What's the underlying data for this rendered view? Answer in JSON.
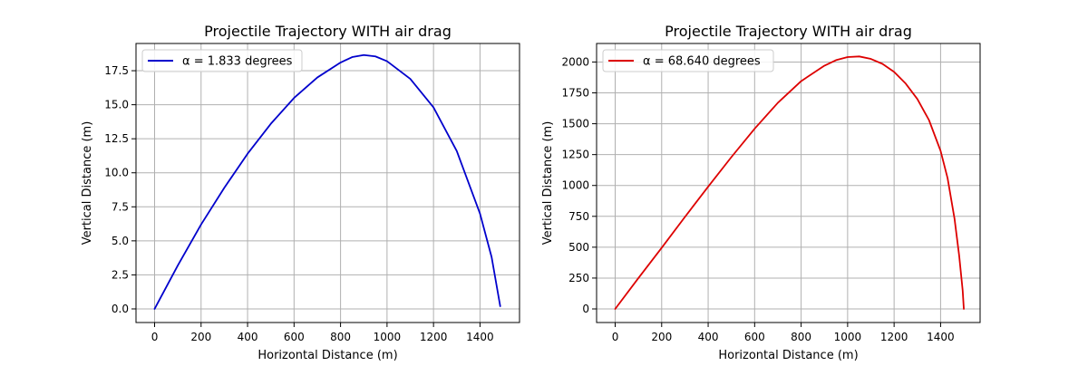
{
  "chart_data": [
    {
      "type": "line",
      "title": "Projectile Trajectory WITH air drag",
      "xlabel": "Horizontal Distance (m)",
      "ylabel": "Vertical Distance (m)",
      "xlim": [
        -80,
        1570
      ],
      "ylim": [
        -1.0,
        19.5
      ],
      "xticks": [
        0,
        200,
        400,
        600,
        800,
        1000,
        1200,
        1400
      ],
      "yticks": [
        0.0,
        2.5,
        5.0,
        7.5,
        10.0,
        12.5,
        15.0,
        17.5
      ],
      "ytick_labels": [
        "0.0",
        "2.5",
        "5.0",
        "7.5",
        "10.0",
        "12.5",
        "15.0",
        "17.5"
      ],
      "grid": true,
      "legend_position": "upper-left",
      "series": [
        {
          "name": "α = 1.833 degrees",
          "color": "#0000cc",
          "x": [
            0,
            100,
            200,
            300,
            400,
            500,
            600,
            700,
            800,
            850,
            900,
            950,
            1000,
            1100,
            1200,
            1300,
            1400,
            1450,
            1487
          ],
          "y": [
            0.0,
            3.2,
            6.2,
            8.9,
            11.4,
            13.6,
            15.5,
            17.0,
            18.1,
            18.5,
            18.65,
            18.55,
            18.2,
            16.9,
            14.8,
            11.6,
            7.0,
            3.8,
            0.2
          ]
        }
      ]
    },
    {
      "type": "line",
      "title": "Projectile Trajectory WITH air drag",
      "xlabel": "Horizontal Distance (m)",
      "ylabel": "Vertical Distance (m)",
      "xlim": [
        -80,
        1570
      ],
      "ylim": [
        -110,
        2150
      ],
      "xticks": [
        0,
        200,
        400,
        600,
        800,
        1000,
        1200,
        1400
      ],
      "yticks": [
        0,
        250,
        500,
        750,
        1000,
        1250,
        1500,
        1750,
        2000
      ],
      "ytick_labels": [
        "0",
        "250",
        "500",
        "750",
        "1000",
        "1250",
        "1500",
        "1750",
        "2000"
      ],
      "grid": true,
      "legend_position": "upper-left",
      "series": [
        {
          "name": "α = 68.640 degrees",
          "color": "#dd0000",
          "x": [
            0,
            100,
            200,
            300,
            400,
            500,
            600,
            700,
            800,
            900,
            950,
            1000,
            1050,
            1100,
            1150,
            1200,
            1250,
            1300,
            1350,
            1400,
            1430,
            1460,
            1480,
            1495,
            1500
          ],
          "y": [
            0,
            250,
            495,
            745,
            990,
            1230,
            1460,
            1670,
            1845,
            1970,
            2015,
            2040,
            2045,
            2025,
            1985,
            1920,
            1825,
            1700,
            1530,
            1280,
            1060,
            730,
            430,
            150,
            0
          ]
        }
      ]
    }
  ]
}
